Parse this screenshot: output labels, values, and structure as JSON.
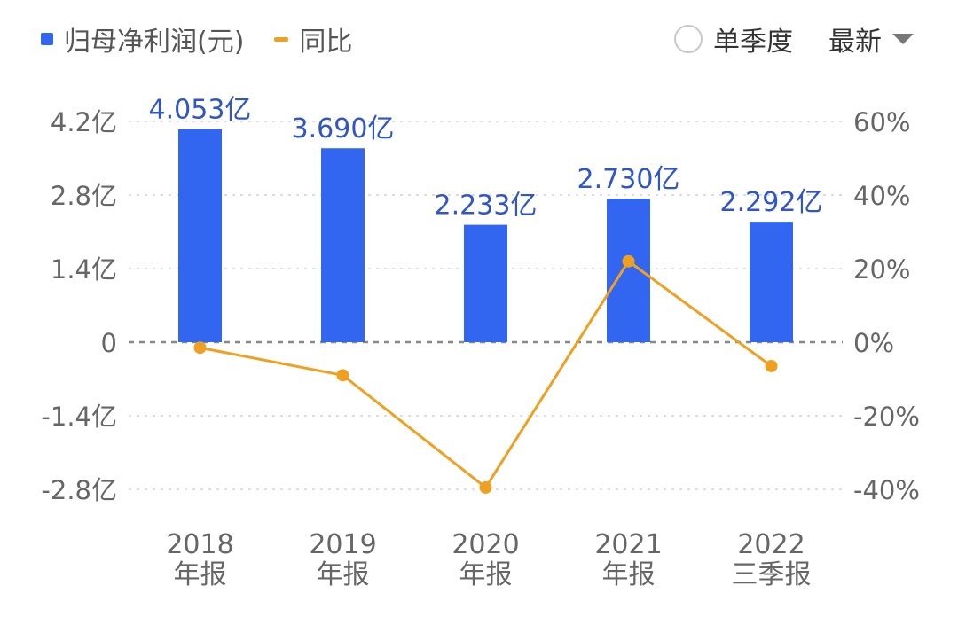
{
  "legend": {
    "bar_label": "归母净利润(元)",
    "line_label": "同比"
  },
  "controls": {
    "single_season_label": "单季度",
    "latest_label": "最新"
  },
  "colors": {
    "bar": "#3366f0",
    "line": "#f0a020",
    "bar_label": "#2f55c8",
    "axis_text": "#666666",
    "grid": "#dddddd",
    "zero_line": "#888888"
  },
  "chart_data": {
    "type": "bar",
    "categories": [
      [
        "2018",
        "年报"
      ],
      [
        "2019",
        "年报"
      ],
      [
        "2020",
        "年报"
      ],
      [
        "2021",
        "年报"
      ],
      [
        "2022",
        "三季报"
      ]
    ],
    "series": [
      {
        "name": "归母净利润(元)",
        "type": "bar",
        "axis": "left",
        "values": [
          4.053,
          3.69,
          2.233,
          2.73,
          2.292
        ],
        "labels": [
          "4.053亿",
          "3.690亿",
          "2.233亿",
          "2.730亿",
          "2.292亿"
        ]
      },
      {
        "name": "同比",
        "type": "line",
        "axis": "right",
        "values": [
          -1.5,
          -9.0,
          -39.5,
          22.0,
          -6.5
        ]
      }
    ],
    "left_axis": {
      "range": [
        -2.8,
        4.2
      ],
      "ticks": [
        4.2,
        2.8,
        1.4,
        0,
        -1.4,
        -2.8
      ],
      "tick_labels": [
        "4.2亿",
        "2.8亿",
        "1.4亿",
        "0",
        "-1.4亿",
        "-2.8亿"
      ]
    },
    "right_axis": {
      "range": [
        -40,
        60
      ],
      "ticks": [
        60,
        40,
        20,
        0,
        -20,
        -40
      ],
      "tick_labels": [
        "60%",
        "40%",
        "20%",
        "0%",
        "-20%",
        "-40%"
      ]
    },
    "grid": true,
    "legend_position": "top-left"
  }
}
